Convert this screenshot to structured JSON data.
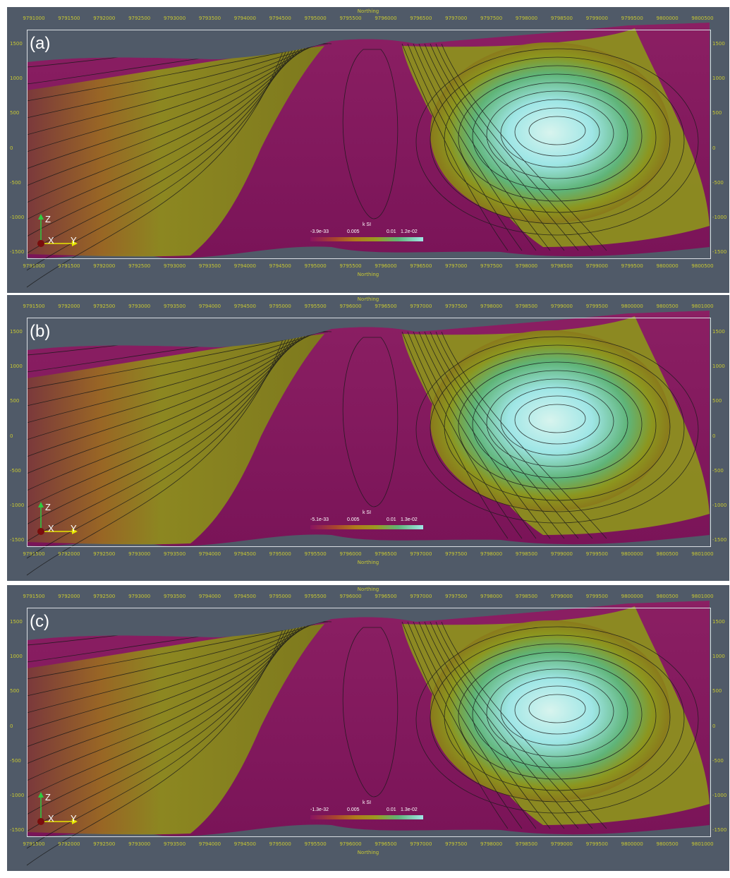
{
  "colors": {
    "background": "#505a68",
    "terrain_top": "#8b1f63",
    "low_value": "#8a1460",
    "mid_value": "#9a9a20",
    "high_value": "#9fe6e6",
    "contour": "#1a1a1a",
    "axis_labels": "#c8c832"
  },
  "panels": [
    {
      "letter": "(a)",
      "axis_title_top": "Northing",
      "axis_title_bottom": "Northing",
      "x_ticks": [
        "9791000",
        "9791500",
        "9792000",
        "9792500",
        "9793000",
        "9793500",
        "9794000",
        "9794500",
        "9795000",
        "9795500",
        "9796000",
        "9796500",
        "9797000",
        "9797500",
        "9798000",
        "9798500",
        "9799000",
        "9799500",
        "9800000",
        "9800500"
      ],
      "z_ticks": [
        "1500",
        "1000",
        "500",
        "0",
        "-500",
        "-1000",
        "-1500"
      ],
      "colorbar": {
        "title": "k SI",
        "min": "-3.9e-33",
        "mid": "0.005",
        "high": "0.01",
        "max": "1.2e-02"
      },
      "triad": {
        "z": "Z",
        "x": "X",
        "y": "Y"
      }
    },
    {
      "letter": "(b)",
      "axis_title_top": "Northing",
      "axis_title_bottom": "Northing",
      "x_ticks": [
        "9791500",
        "9792000",
        "9792500",
        "9793000",
        "9793500",
        "9794000",
        "9794500",
        "9795000",
        "9795500",
        "9796000",
        "9796500",
        "9797000",
        "9797500",
        "9798000",
        "9798500",
        "9799000",
        "9799500",
        "9800000",
        "9800500",
        "9801000"
      ],
      "z_ticks": [
        "1500",
        "1000",
        "500",
        "0",
        "-500",
        "-1000",
        "-1500"
      ],
      "colorbar": {
        "title": "k SI",
        "min": "-5.1e-33",
        "mid": "0.005",
        "high": "0.01",
        "max": "1.3e-02"
      },
      "triad": {
        "z": "Z",
        "x": "X",
        "y": "Y"
      }
    },
    {
      "letter": "(c)",
      "axis_title_top": "Northing",
      "axis_title_bottom": "Northing",
      "x_ticks": [
        "9791500",
        "9792000",
        "9792500",
        "9793000",
        "9793500",
        "9794000",
        "9794500",
        "9795000",
        "9795500",
        "9796000",
        "9796500",
        "9797000",
        "9797500",
        "9798000",
        "9798500",
        "9799000",
        "9799500",
        "9800000",
        "9800500",
        "9801000"
      ],
      "z_ticks": [
        "1500",
        "1000",
        "500",
        "0",
        "-500",
        "-1000",
        "-1500"
      ],
      "colorbar": {
        "title": "k SI",
        "min": "-1.3e-32",
        "mid": "0.005",
        "high": "0.01",
        "max": "1.3e-02"
      },
      "triad": {
        "z": "Z",
        "x": "X",
        "y": "Y"
      }
    }
  ]
}
